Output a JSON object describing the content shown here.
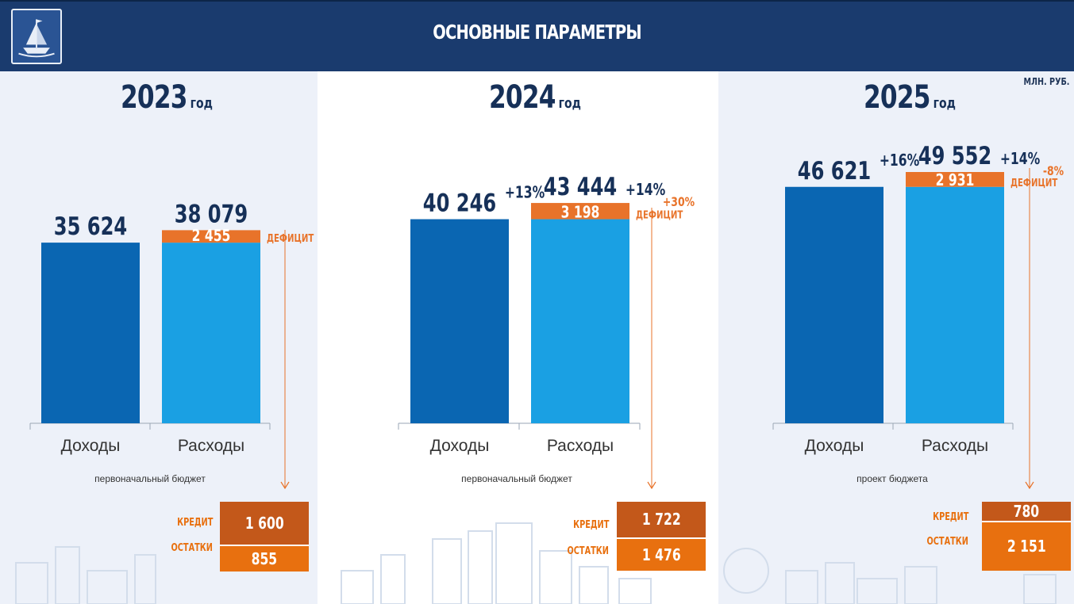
{
  "header": {
    "title": "ОСНОВНЫЕ ПАРАМЕТРЫ",
    "logo_icon": "ship-emblem-icon"
  },
  "unit": "МЛН. РУБ.",
  "colors": {
    "header_bg": "#1a3b6e",
    "income": "#0a66b2",
    "expense": "#1aa0e3",
    "deficit": "#e8732a",
    "credit": "#c3581a",
    "rest": "#e8700f",
    "change_text": "#163058"
  },
  "chart_data": [
    {
      "type": "bar",
      "year": "2023",
      "year_suffix": "год",
      "categories": [
        "Доходы",
        "Расходы"
      ],
      "values": [
        35624,
        38079
      ],
      "value_labels": [
        "35 624",
        "38 079"
      ],
      "deficit": 2455,
      "deficit_label": "2 455",
      "deficit_text": "ДЕФИЦИТ",
      "caption": "первоначальный бюджет",
      "credit": 1600,
      "credit_label": "1 600",
      "credit_text": "КРЕДИТ",
      "rest": 855,
      "rest_label": "855",
      "rest_text": "ОСТАТКИ"
    },
    {
      "type": "bar",
      "year": "2024",
      "year_suffix": "год",
      "categories": [
        "Доходы",
        "Расходы"
      ],
      "values": [
        40246,
        43444
      ],
      "value_labels": [
        "40 246",
        "43 444"
      ],
      "changes": [
        "+13%",
        "+14%"
      ],
      "deficit": 3198,
      "deficit_label": "3 198",
      "deficit_text": "ДЕФИЦИТ",
      "deficit_change": "+30%",
      "caption": "первоначальный бюджет",
      "credit": 1722,
      "credit_label": "1 722",
      "credit_text": "КРЕДИТ",
      "rest": 1476,
      "rest_label": "1 476",
      "rest_text": "ОСТАТКИ"
    },
    {
      "type": "bar",
      "year": "2025",
      "year_suffix": "год",
      "categories": [
        "Доходы",
        "Расходы"
      ],
      "values": [
        46621,
        49552
      ],
      "value_labels": [
        "46 621",
        "49 552"
      ],
      "changes": [
        "+16%",
        "+14%"
      ],
      "deficit": 2931,
      "deficit_label": "2 931",
      "deficit_text": "ДЕФИЦИТ",
      "deficit_change": "-8%",
      "caption": "проект бюджета",
      "credit": 780,
      "credit_label": "780",
      "credit_text": "КРЕДИТ",
      "rest": 2151,
      "rest_label": "2 151",
      "rest_text": "ОСТАТКИ"
    }
  ]
}
